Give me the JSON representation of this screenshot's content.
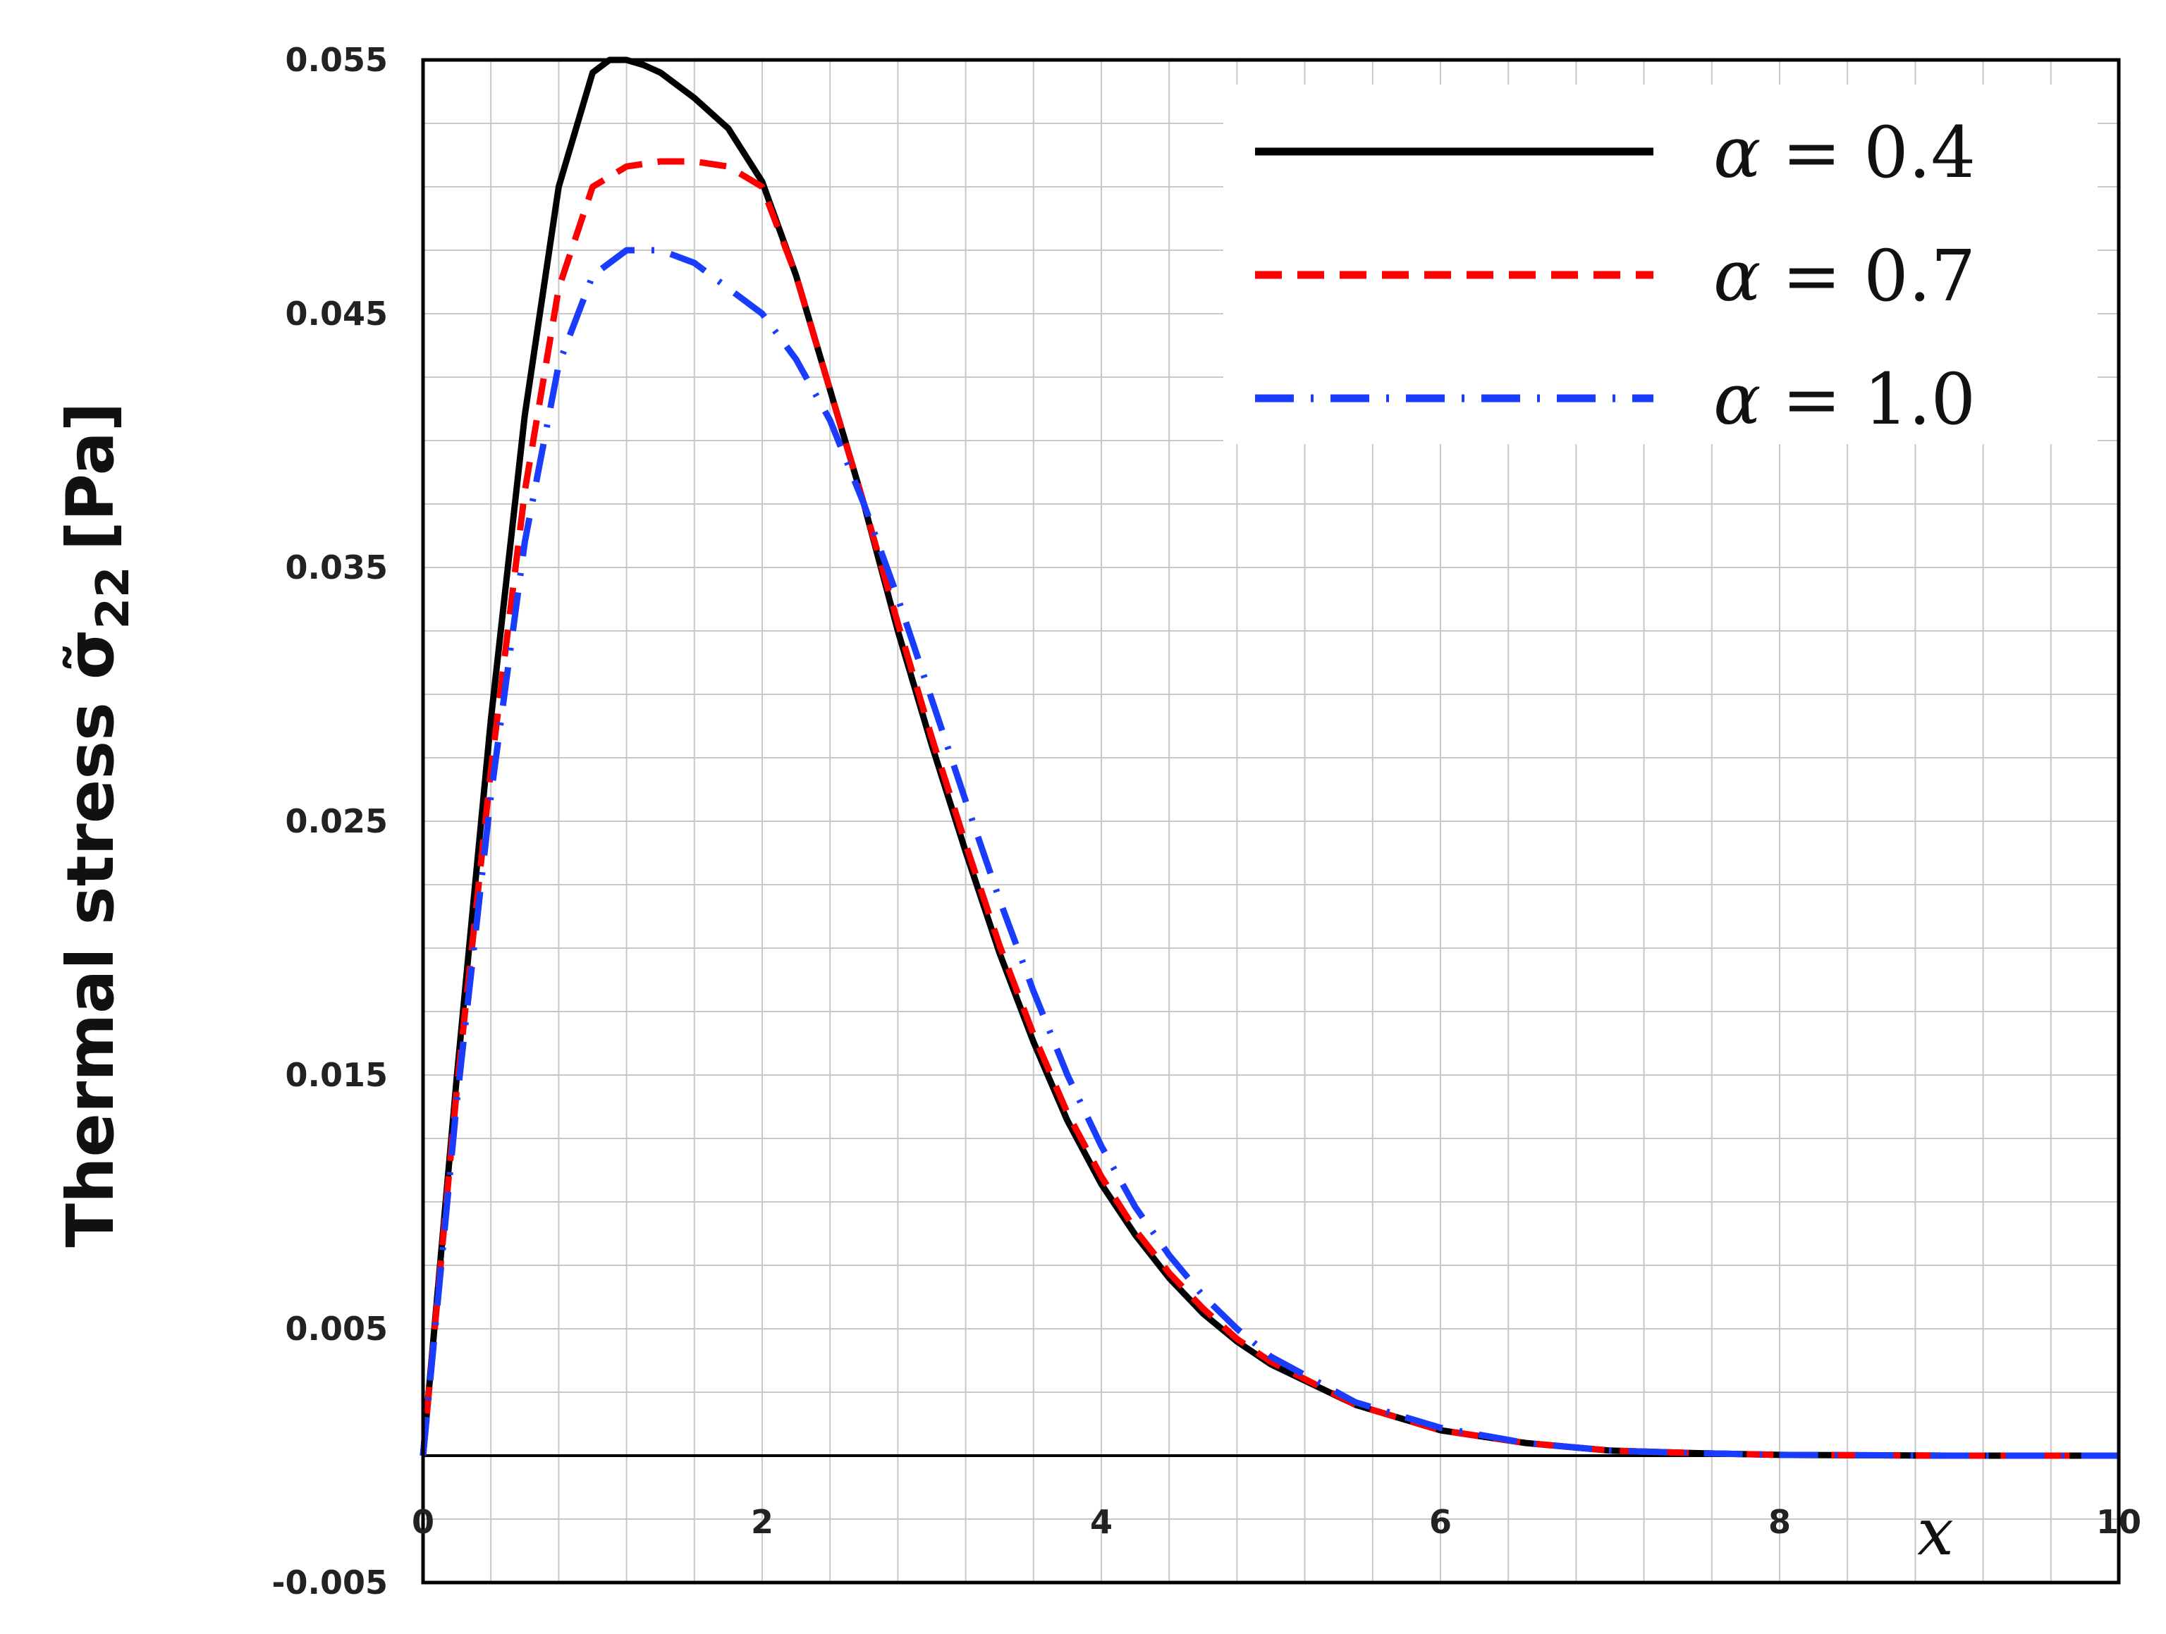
{
  "chart_data": {
    "type": "line",
    "title": "",
    "xlabel": "x",
    "ylabel": "Thermal stress σ̃",
    "ylabel_subscript": "22",
    "ylabel_unit": "[Pa]",
    "xlim": [
      0,
      10
    ],
    "ylim": [
      -0.005,
      0.055
    ],
    "xticks": [
      0,
      2,
      4,
      6,
      8,
      10
    ],
    "xtick_labels": [
      "0",
      "2",
      "4",
      "6",
      "8",
      "10"
    ],
    "yticks": [
      -0.005,
      0.005,
      0.015,
      0.025,
      0.035,
      0.045,
      0.055
    ],
    "ytick_labels": [
      "-0.005",
      "0.005",
      "0.015",
      "0.025",
      "0.035",
      "0.045",
      "0.055"
    ],
    "grid": true,
    "legend_position": "top-right",
    "series": [
      {
        "name": "α = 0.4",
        "legend_symbol": "α",
        "legend_value": "= 0.4",
        "color": "#000000",
        "style": "solid",
        "x": [
          0,
          0.2,
          0.4,
          0.6,
          0.8,
          1.0,
          1.1,
          1.2,
          1.3,
          1.4,
          1.6,
          1.8,
          2.0,
          2.2,
          2.4,
          2.6,
          2.8,
          3.0,
          3.2,
          3.4,
          3.6,
          3.8,
          4.0,
          4.2,
          4.4,
          4.6,
          4.8,
          5.0,
          5.5,
          6.0,
          6.5,
          7.0,
          7.5,
          8.0,
          9.0,
          10.0
        ],
        "y": [
          0,
          0.015,
          0.029,
          0.041,
          0.05,
          0.0545,
          0.055,
          0.055,
          0.0548,
          0.0545,
          0.0535,
          0.0523,
          0.0502,
          0.0465,
          0.042,
          0.0375,
          0.0325,
          0.028,
          0.0238,
          0.0198,
          0.0163,
          0.0132,
          0.0107,
          0.0087,
          0.007,
          0.0056,
          0.0045,
          0.0036,
          0.002,
          0.001,
          0.0005,
          0.0002,
          0.0001,
          3e-05,
          0,
          0
        ]
      },
      {
        "name": "α = 0.7",
        "legend_symbol": "α",
        "legend_value": "= 0.7",
        "color": "#ff0000",
        "style": "dashed",
        "x": [
          0,
          0.2,
          0.4,
          0.6,
          0.8,
          1.0,
          1.2,
          1.4,
          1.6,
          1.8,
          2.0,
          2.2,
          2.4,
          2.6,
          2.8,
          3.0,
          3.2,
          3.4,
          3.6,
          3.8,
          4.0,
          4.2,
          4.4,
          4.6,
          4.8,
          5.0,
          5.5,
          6.0,
          6.5,
          7.0,
          7.5,
          8.0,
          9.0,
          10.0
        ],
        "y": [
          0,
          0.0145,
          0.027,
          0.038,
          0.046,
          0.05,
          0.0508,
          0.051,
          0.051,
          0.0508,
          0.05,
          0.0465,
          0.042,
          0.0375,
          0.0328,
          0.0283,
          0.0241,
          0.0201,
          0.0166,
          0.0135,
          0.011,
          0.0089,
          0.0072,
          0.0058,
          0.0046,
          0.0037,
          0.002,
          0.001,
          0.0005,
          0.0002,
          0.0001,
          3e-05,
          0,
          0
        ]
      },
      {
        "name": "α = 1.0",
        "legend_symbol": "α",
        "legend_value": "= 1.0",
        "color": "#1a3cff",
        "style": "dash-dot",
        "x": [
          0,
          0.2,
          0.4,
          0.6,
          0.8,
          1.0,
          1.2,
          1.4,
          1.6,
          1.8,
          2.0,
          2.2,
          2.4,
          2.6,
          2.8,
          3.0,
          3.2,
          3.4,
          3.6,
          3.8,
          4.0,
          4.2,
          4.4,
          4.6,
          4.8,
          5.0,
          5.5,
          6.0,
          6.5,
          7.0,
          7.5,
          8.0,
          9.0,
          10.0
        ],
        "y": [
          0,
          0.014,
          0.026,
          0.036,
          0.043,
          0.0465,
          0.0475,
          0.0475,
          0.047,
          0.046,
          0.045,
          0.0432,
          0.0408,
          0.0375,
          0.0338,
          0.0298,
          0.0258,
          0.0219,
          0.0183,
          0.015,
          0.0122,
          0.0098,
          0.0079,
          0.0063,
          0.005,
          0.0039,
          0.0021,
          0.0011,
          0.0005,
          0.0002,
          0.0001,
          3e-05,
          0,
          0
        ]
      }
    ]
  }
}
